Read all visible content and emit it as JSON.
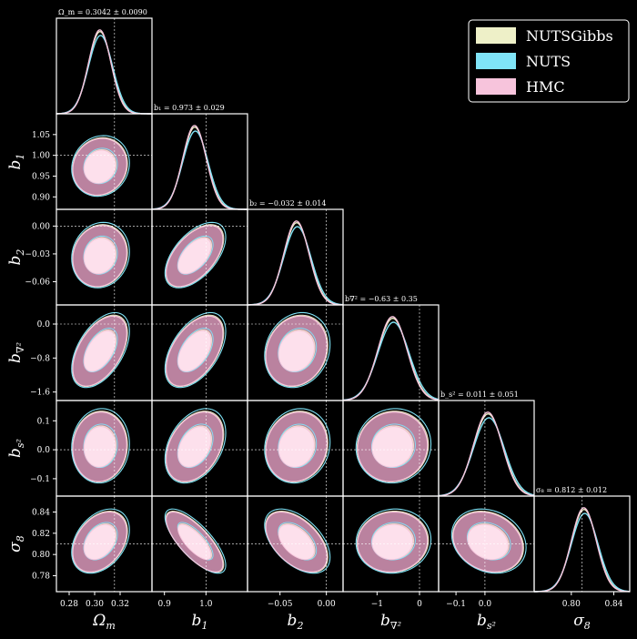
{
  "chart_data": {
    "type": "corner",
    "params": [
      {
        "key": "Om",
        "label": "Ω",
        "sub": "m",
        "title": "Ω_m = 0.3042 ± 0.0090",
        "mean": 0.3042,
        "sigma": 0.009,
        "truth": 0.3156,
        "range": [
          0.27,
          0.345
        ],
        "ticks": [
          0.28,
          0.3,
          0.32
        ],
        "tick_labels": [
          "0.28",
          "0.30",
          "0.32"
        ]
      },
      {
        "key": "b1",
        "label": "b",
        "sub": "1",
        "title": "b₁ = 0.973 ± 0.029",
        "mean": 0.973,
        "sigma": 0.029,
        "truth": 1.0,
        "range": [
          0.87,
          1.1
        ],
        "ticks": [
          0.9,
          1.0
        ],
        "tick_labels": [
          "0.9",
          "1.0"
        ],
        "left_ticks": [
          0.9,
          0.95,
          1.0,
          1.05
        ],
        "left_tick_labels": [
          "0.90",
          "0.95",
          "1.00",
          "1.05"
        ]
      },
      {
        "key": "b2",
        "label": "b",
        "sub": "2",
        "title": "b₂ = −0.032 ± 0.014",
        "mean": -0.032,
        "sigma": 0.014,
        "truth": 0.0,
        "range": [
          -0.085,
          0.018
        ],
        "ticks": [
          -0.05,
          0.0
        ],
        "tick_labels": [
          "−0.05",
          "0.00"
        ],
        "left_ticks": [
          -0.06,
          -0.03,
          0.0
        ],
        "left_tick_labels": [
          "−0.06",
          "−0.03",
          "0.00"
        ]
      },
      {
        "key": "bnabla",
        "label": "b",
        "sub": "∇²",
        "title": "b∇² = −0.63 ± 0.35",
        "mean": -0.63,
        "sigma": 0.35,
        "truth": 0.0,
        "range": [
          -1.8,
          0.45
        ],
        "ticks": [
          -1,
          0
        ],
        "tick_labels": [
          "−1",
          "0"
        ],
        "left_ticks": [
          -1.6,
          -0.8,
          0.0
        ],
        "left_tick_labels": [
          "−1.6",
          "−0.8",
          "0.0"
        ]
      },
      {
        "key": "bs2",
        "label": "b",
        "sub": "s²",
        "title": "b_s² = 0.011 ± 0.051",
        "mean": 0.011,
        "sigma": 0.051,
        "truth": 0.0,
        "range": [
          -0.16,
          0.17
        ],
        "ticks": [
          -0.1,
          0.0
        ],
        "tick_labels": [
          "−0.1",
          "0.0"
        ],
        "left_ticks": [
          -0.1,
          0.0,
          0.1
        ],
        "left_tick_labels": [
          "−0.1",
          "0.0",
          "0.1"
        ]
      },
      {
        "key": "s8",
        "label": "σ",
        "sub": "8",
        "title": "σ₈ = 0.812 ± 0.012",
        "mean": 0.812,
        "sigma": 0.012,
        "truth": 0.8102,
        "range": [
          0.765,
          0.855
        ],
        "ticks": [
          0.8,
          0.84
        ],
        "tick_labels": [
          "0.80",
          "0.84"
        ],
        "left_ticks": [
          0.78,
          0.8,
          0.82,
          0.84
        ],
        "left_tick_labels": [
          "0.78",
          "0.80",
          "0.82",
          "0.84"
        ]
      }
    ],
    "correlations": [
      [
        1,
        0.1,
        0.1,
        0.5,
        0.05,
        0.35
      ],
      [
        0.1,
        1,
        0.55,
        0.5,
        0.35,
        -0.75
      ],
      [
        0.1,
        0.55,
        1,
        0.15,
        0.1,
        -0.5
      ],
      [
        0.5,
        0.5,
        0.15,
        1,
        0.05,
        0.05
      ],
      [
        0.05,
        0.35,
        0.1,
        0.05,
        1,
        -0.2
      ],
      [
        0.35,
        -0.75,
        -0.5,
        0.05,
        -0.2,
        1
      ]
    ],
    "series": [
      {
        "name": "NUTSGibbs",
        "color": "#eef0c8",
        "scale": 1.0,
        "shift": 0.0
      },
      {
        "name": "NUTS",
        "color": "#7fe4f7",
        "scale": 1.05,
        "shift": 0.05
      },
      {
        "name": "HMC",
        "color": "#f7c4dc",
        "scale": 0.98,
        "shift": -0.02
      }
    ],
    "legend_position": "top-right"
  },
  "legend": {
    "items": [
      "NUTSGibbs",
      "NUTS",
      "HMC"
    ]
  },
  "colors": {
    "background": "#000000",
    "frame": "#ffffff",
    "outer_fill": "#c48aa8",
    "inner_fill": "#fde0ec",
    "nuts_edge": "#7fe4f7",
    "gibbs_edge": "#eef0c8",
    "truth_line": "#ffffff"
  }
}
